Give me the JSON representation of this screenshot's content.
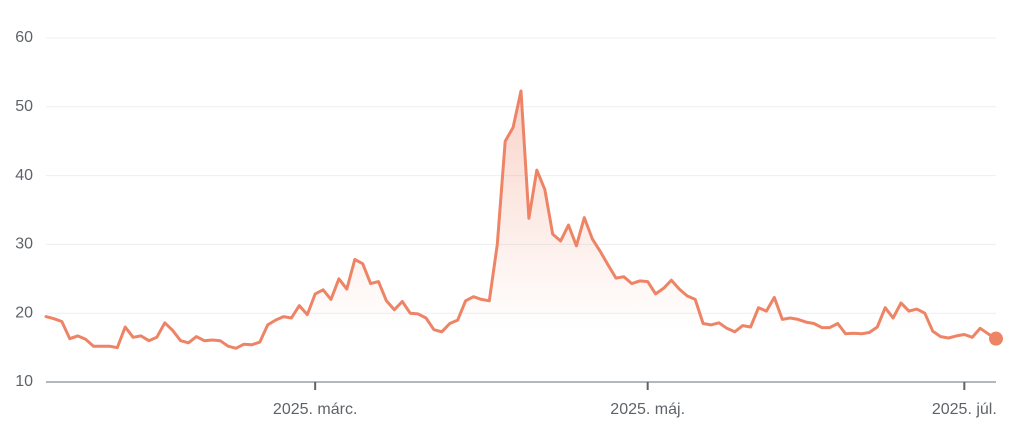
{
  "chart_data": {
    "type": "line",
    "series": [
      {
        "color": "#ee8466",
        "values": [
          19.5,
          19.2,
          18.8,
          16.3,
          16.7,
          16.2,
          15.2,
          15.2,
          15.2,
          15.0,
          18.0,
          16.5,
          16.7,
          16.0,
          16.5,
          18.6,
          17.5,
          16.0,
          15.7,
          16.6,
          16.0,
          16.1,
          16.0,
          15.2,
          14.9,
          15.5,
          15.4,
          15.8,
          18.3,
          19.0,
          19.5,
          19.3,
          21.1,
          19.8,
          22.8,
          23.4,
          22.0,
          25.0,
          23.5,
          27.8,
          27.2,
          24.3,
          24.6,
          21.8,
          20.5,
          21.7,
          20.0,
          19.9,
          19.3,
          17.6,
          17.3,
          18.5,
          19.0,
          21.8,
          22.4,
          22.0,
          21.8,
          30.0,
          45.0,
          47.0,
          52.3,
          33.8,
          40.8,
          38.0,
          31.5,
          30.5,
          32.8,
          29.8,
          33.9,
          30.8,
          29.0,
          27.0,
          25.1,
          25.3,
          24.3,
          24.7,
          24.6,
          22.8,
          23.6,
          24.8,
          23.5,
          22.5,
          22.0,
          18.5,
          18.3,
          18.6,
          17.8,
          17.3,
          18.2,
          18.0,
          20.8,
          20.3,
          22.3,
          19.1,
          19.3,
          19.1,
          18.7,
          18.5,
          17.9,
          17.9,
          18.5,
          17.0,
          17.1,
          17.0,
          17.2,
          18.0,
          20.8,
          19.3,
          21.5,
          20.3,
          20.6,
          20.0,
          17.4,
          16.6,
          16.4,
          16.7,
          16.9,
          16.5,
          17.8,
          17.0,
          16.3
        ]
      }
    ],
    "xlim": [
      0,
      120
    ],
    "xticks": [
      {
        "value": 34,
        "label": "2025. márc."
      },
      {
        "value": 76,
        "label": "2025. máj."
      },
      {
        "value": 116,
        "label": "2025. júl."
      }
    ],
    "ylim": [
      10,
      60
    ],
    "yticks": [
      10,
      20,
      30,
      40,
      50,
      60
    ],
    "grid": true
  }
}
